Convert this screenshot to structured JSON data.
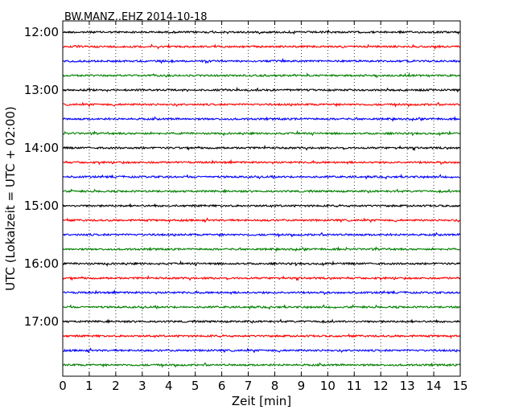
{
  "chart_data": {
    "type": "line",
    "title": "BW.MANZ..EHZ 2014-10-18",
    "xlabel": "Zeit  [min]",
    "ylabel": "UTC (Lokalzeit = UTC + 02:00)",
    "xlim": [
      0,
      15
    ],
    "x_ticks": [
      0,
      1,
      2,
      3,
      4,
      5,
      6,
      7,
      8,
      9,
      10,
      11,
      12,
      13,
      14,
      15
    ],
    "y_tick_labels": [
      "12:00",
      "13:00",
      "14:00",
      "15:00",
      "16:00",
      "17:00"
    ],
    "trace_start_hour": 12,
    "trace_minutes": 15,
    "trace_count": 24,
    "trace_colors": [
      "#000000",
      "#ff0000",
      "#0000ff",
      "#008000"
    ],
    "grid": "vertical dotted"
  }
}
